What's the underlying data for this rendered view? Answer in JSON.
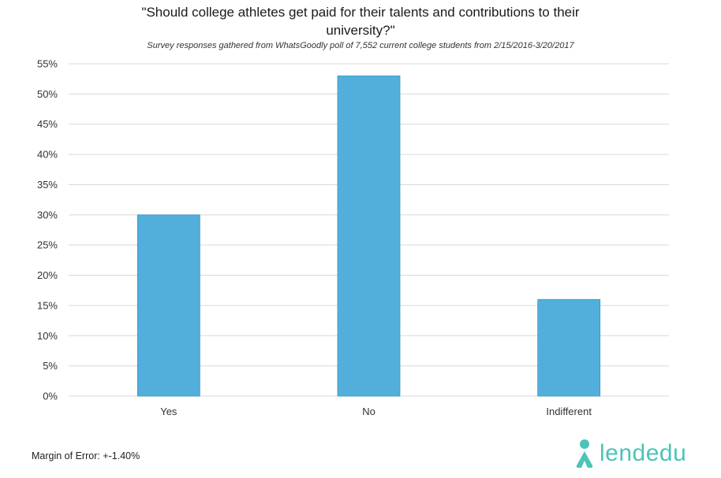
{
  "header": {
    "title": "\"Should college athletes get paid for their talents and contributions to their university?\"",
    "subtitle": "Survey responses gathered from WhatsGoodly poll of 7,552 current college students from 2/15/2016-3/20/2017"
  },
  "footer": {
    "margin_of_error": "Margin of Error: +-1.40%",
    "brand": "lendedu"
  },
  "colors": {
    "bar": "#52afdb",
    "bar_stroke": "#3c96c2",
    "grid": "#d9d9d9",
    "brand": "#4cc3b8"
  },
  "chart_data": {
    "type": "bar",
    "title": "\"Should college athletes get paid for their talents and contributions to their university?\"",
    "subtitle": "Survey responses gathered from WhatsGoodly poll of 7,552 current college students from 2/15/2016-3/20/2017",
    "categories": [
      "Yes",
      "No",
      "Indifferent"
    ],
    "values": [
      30,
      53,
      16
    ],
    "ylim": [
      0,
      55
    ],
    "yticks": [
      0,
      5,
      10,
      15,
      20,
      25,
      30,
      35,
      40,
      45,
      50,
      55
    ],
    "ytick_labels": [
      "0%",
      "5%",
      "10%",
      "15%",
      "20%",
      "25%",
      "30%",
      "35%",
      "40%",
      "45%",
      "50%",
      "55%"
    ],
    "xlabel": "",
    "ylabel": "",
    "grid": true,
    "legend": "none"
  }
}
